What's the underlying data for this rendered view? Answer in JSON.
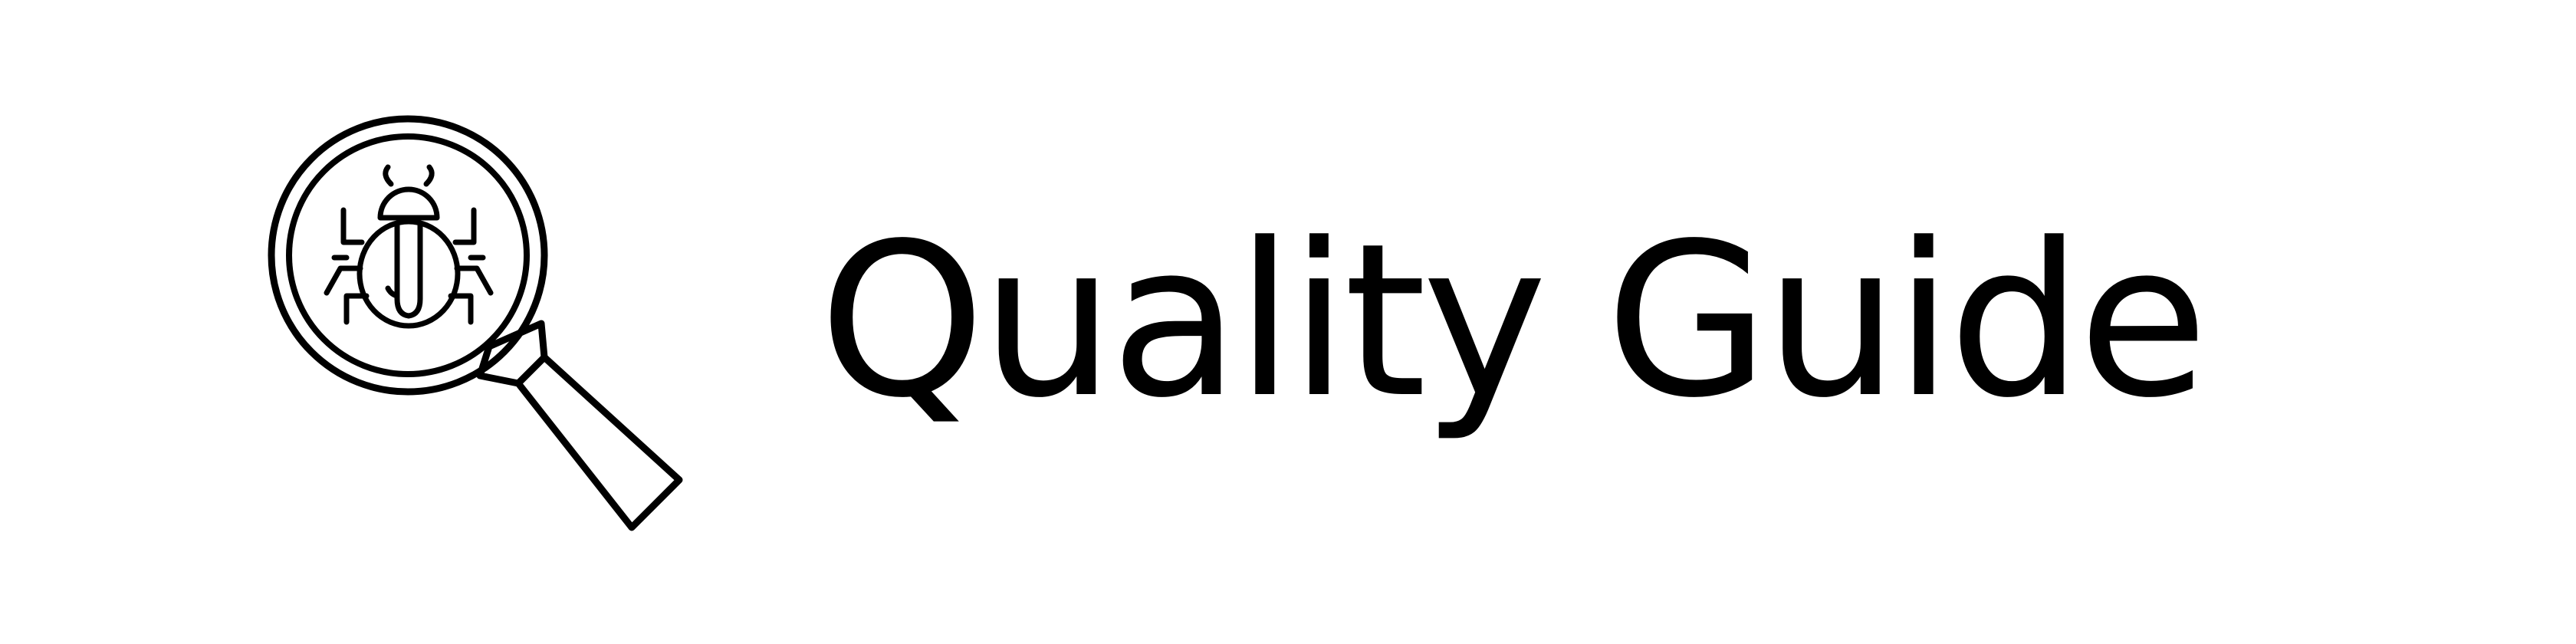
{
  "banner": {
    "title": "Quality Guide",
    "icon": "magnifying-glass-bug-icon",
    "text_color": "#000000",
    "background_color": "#ffffff"
  }
}
